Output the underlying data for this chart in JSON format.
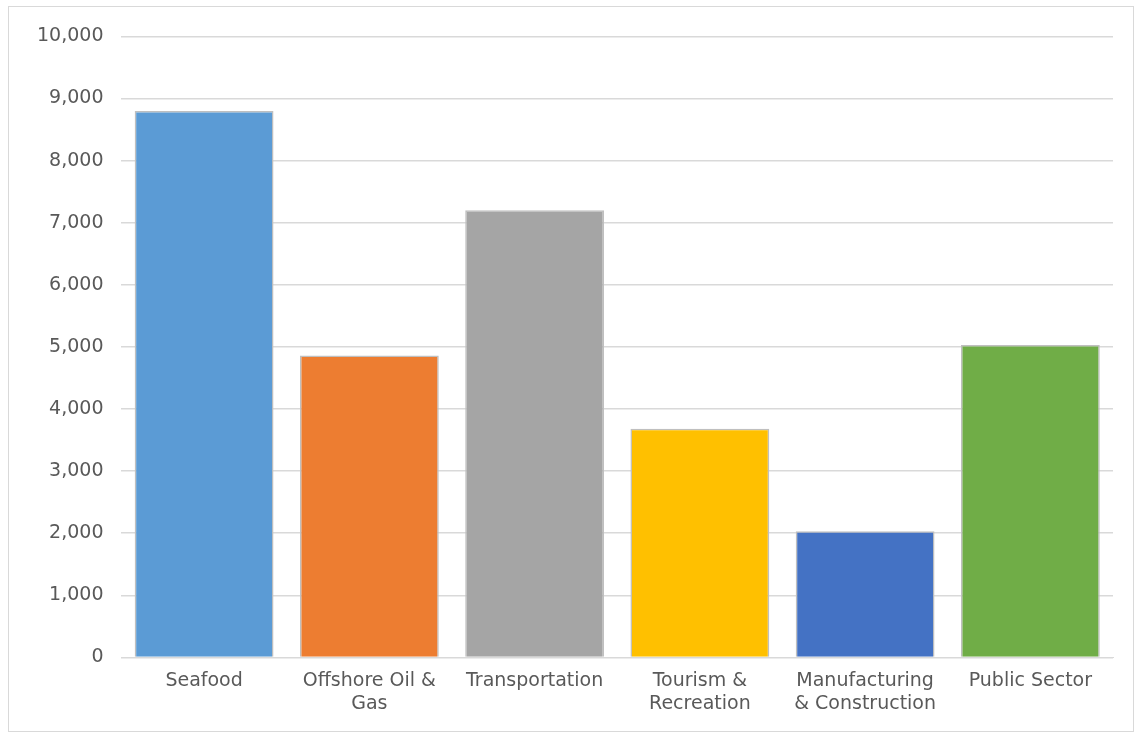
{
  "chart_data": {
    "type": "bar",
    "categories": [
      "Seafood",
      "Offshore Oil & Gas",
      "Transportation",
      "Tourism & Recreation",
      "Manufacturing & Construction",
      "Public Sector"
    ],
    "values": [
      8800,
      4860,
      7200,
      3680,
      2030,
      5030
    ],
    "colors": [
      "#5b9bd5",
      "#ed7d31",
      "#a5a5a5",
      "#ffc000",
      "#4472c4",
      "#70ad47"
    ],
    "ylim": [
      0,
      10000
    ],
    "yticks": [
      {
        "value": 0,
        "label": "0"
      },
      {
        "value": 1000,
        "label": "1,000"
      },
      {
        "value": 2000,
        "label": "2,000"
      },
      {
        "value": 3000,
        "label": "3,000"
      },
      {
        "value": 4000,
        "label": "4,000"
      },
      {
        "value": 5000,
        "label": "5,000"
      },
      {
        "value": 6000,
        "label": "6,000"
      },
      {
        "value": 7000,
        "label": "7,000"
      },
      {
        "value": 8000,
        "label": "8,000"
      },
      {
        "value": 9000,
        "label": "9,000"
      },
      {
        "value": 10000,
        "label": "10,000"
      }
    ],
    "grid": "y",
    "legend": false
  }
}
